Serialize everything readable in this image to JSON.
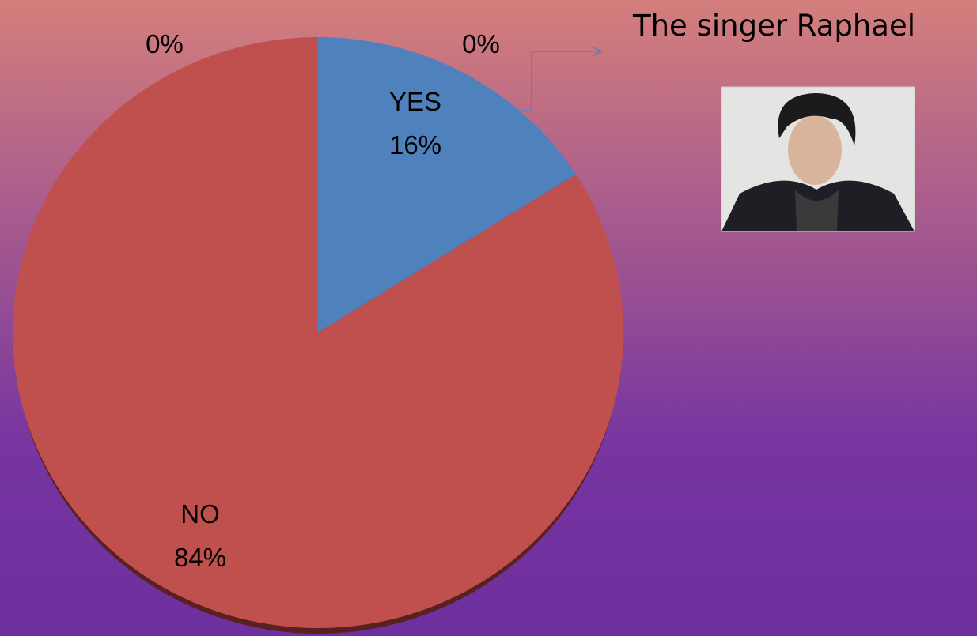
{
  "chart_data": {
    "type": "pie",
    "categories": [
      "YES",
      "NO",
      null,
      null
    ],
    "values": [
      16,
      84,
      0,
      0
    ],
    "value_labels": [
      "16%",
      "84%",
      "0%",
      "0%"
    ],
    "colors": [
      "#4f81bd",
      "#c0504d",
      "#9bbb59",
      "#8064a2"
    ],
    "annotation": "The singer Raphael"
  }
}
